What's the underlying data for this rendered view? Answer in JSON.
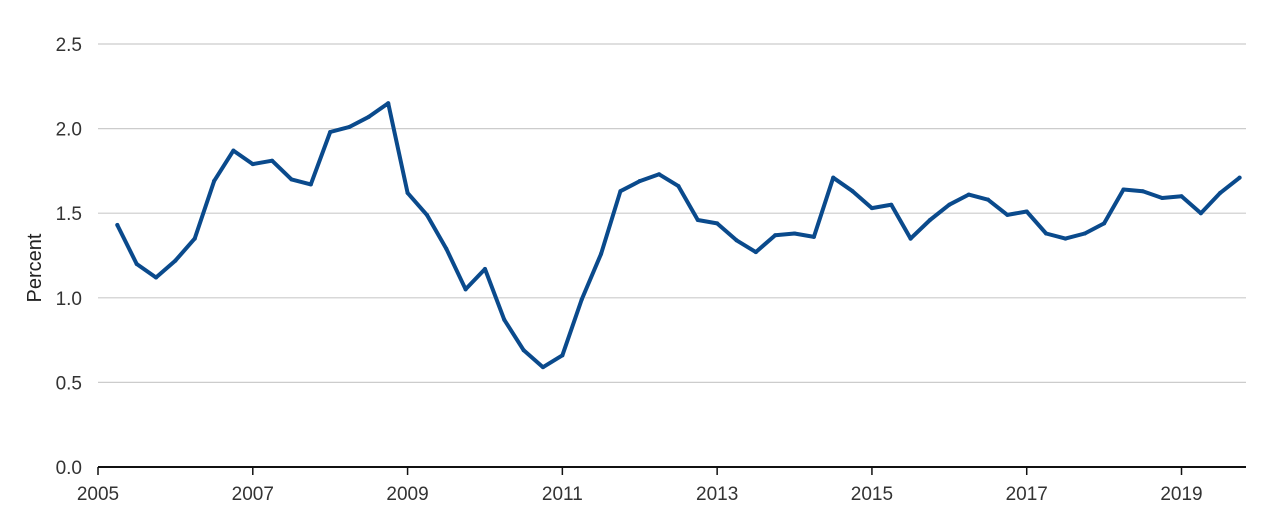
{
  "chart_data": {
    "type": "line",
    "title": "",
    "xlabel": "",
    "ylabel": "Percent",
    "ylim": [
      0,
      2.5
    ],
    "xlim": [
      "2005-01",
      "2019-10"
    ],
    "y_ticks": [
      "0.0",
      "0.5",
      "1.0",
      "1.5",
      "2.0",
      "2.5"
    ],
    "x_ticks": [
      "2005",
      "2007",
      "2009",
      "2011",
      "2013",
      "2015",
      "2017",
      "2019"
    ],
    "grid": "horizontal",
    "line_color": "#0a4a8c",
    "series": [
      {
        "name": "",
        "points": [
          {
            "x": "2005-04",
            "y": 1.43
          },
          {
            "x": "2005-07",
            "y": 1.2
          },
          {
            "x": "2005-10",
            "y": 1.12
          },
          {
            "x": "2006-01",
            "y": 1.22
          },
          {
            "x": "2006-04",
            "y": 1.35
          },
          {
            "x": "2006-07",
            "y": 1.69
          },
          {
            "x": "2006-10",
            "y": 1.87
          },
          {
            "x": "2007-01",
            "y": 1.79
          },
          {
            "x": "2007-04",
            "y": 1.81
          },
          {
            "x": "2007-07",
            "y": 1.7
          },
          {
            "x": "2007-10",
            "y": 1.67
          },
          {
            "x": "2008-01",
            "y": 1.98
          },
          {
            "x": "2008-04",
            "y": 2.01
          },
          {
            "x": "2008-07",
            "y": 2.07
          },
          {
            "x": "2008-10",
            "y": 2.15
          },
          {
            "x": "2009-01",
            "y": 1.62
          },
          {
            "x": "2009-04",
            "y": 1.49
          },
          {
            "x": "2009-07",
            "y": 1.29
          },
          {
            "x": "2009-10",
            "y": 1.05
          },
          {
            "x": "2010-01",
            "y": 1.17
          },
          {
            "x": "2010-04",
            "y": 0.87
          },
          {
            "x": "2010-07",
            "y": 0.69
          },
          {
            "x": "2010-10",
            "y": 0.59
          },
          {
            "x": "2011-01",
            "y": 0.66
          },
          {
            "x": "2011-04",
            "y": 0.99
          },
          {
            "x": "2011-07",
            "y": 1.26
          },
          {
            "x": "2011-10",
            "y": 1.63
          },
          {
            "x": "2012-01",
            "y": 1.69
          },
          {
            "x": "2012-04",
            "y": 1.73
          },
          {
            "x": "2012-07",
            "y": 1.66
          },
          {
            "x": "2012-10",
            "y": 1.46
          },
          {
            "x": "2013-01",
            "y": 1.44
          },
          {
            "x": "2013-04",
            "y": 1.34
          },
          {
            "x": "2013-07",
            "y": 1.27
          },
          {
            "x": "2013-10",
            "y": 1.37
          },
          {
            "x": "2014-01",
            "y": 1.38
          },
          {
            "x": "2014-04",
            "y": 1.36
          },
          {
            "x": "2014-07",
            "y": 1.71
          },
          {
            "x": "2014-10",
            "y": 1.63
          },
          {
            "x": "2015-01",
            "y": 1.53
          },
          {
            "x": "2015-04",
            "y": 1.55
          },
          {
            "x": "2015-07",
            "y": 1.35
          },
          {
            "x": "2015-10",
            "y": 1.46
          },
          {
            "x": "2016-01",
            "y": 1.55
          },
          {
            "x": "2016-04",
            "y": 1.61
          },
          {
            "x": "2016-07",
            "y": 1.58
          },
          {
            "x": "2016-10",
            "y": 1.49
          },
          {
            "x": "2017-01",
            "y": 1.51
          },
          {
            "x": "2017-04",
            "y": 1.38
          },
          {
            "x": "2017-07",
            "y": 1.35
          },
          {
            "x": "2017-10",
            "y": 1.38
          },
          {
            "x": "2018-01",
            "y": 1.44
          },
          {
            "x": "2018-04",
            "y": 1.64
          },
          {
            "x": "2018-07",
            "y": 1.63
          },
          {
            "x": "2018-10",
            "y": 1.59
          },
          {
            "x": "2019-01",
            "y": 1.6
          },
          {
            "x": "2019-04",
            "y": 1.5
          },
          {
            "x": "2019-07",
            "y": 1.62
          },
          {
            "x": "2019-10",
            "y": 1.71
          }
        ]
      }
    ]
  }
}
